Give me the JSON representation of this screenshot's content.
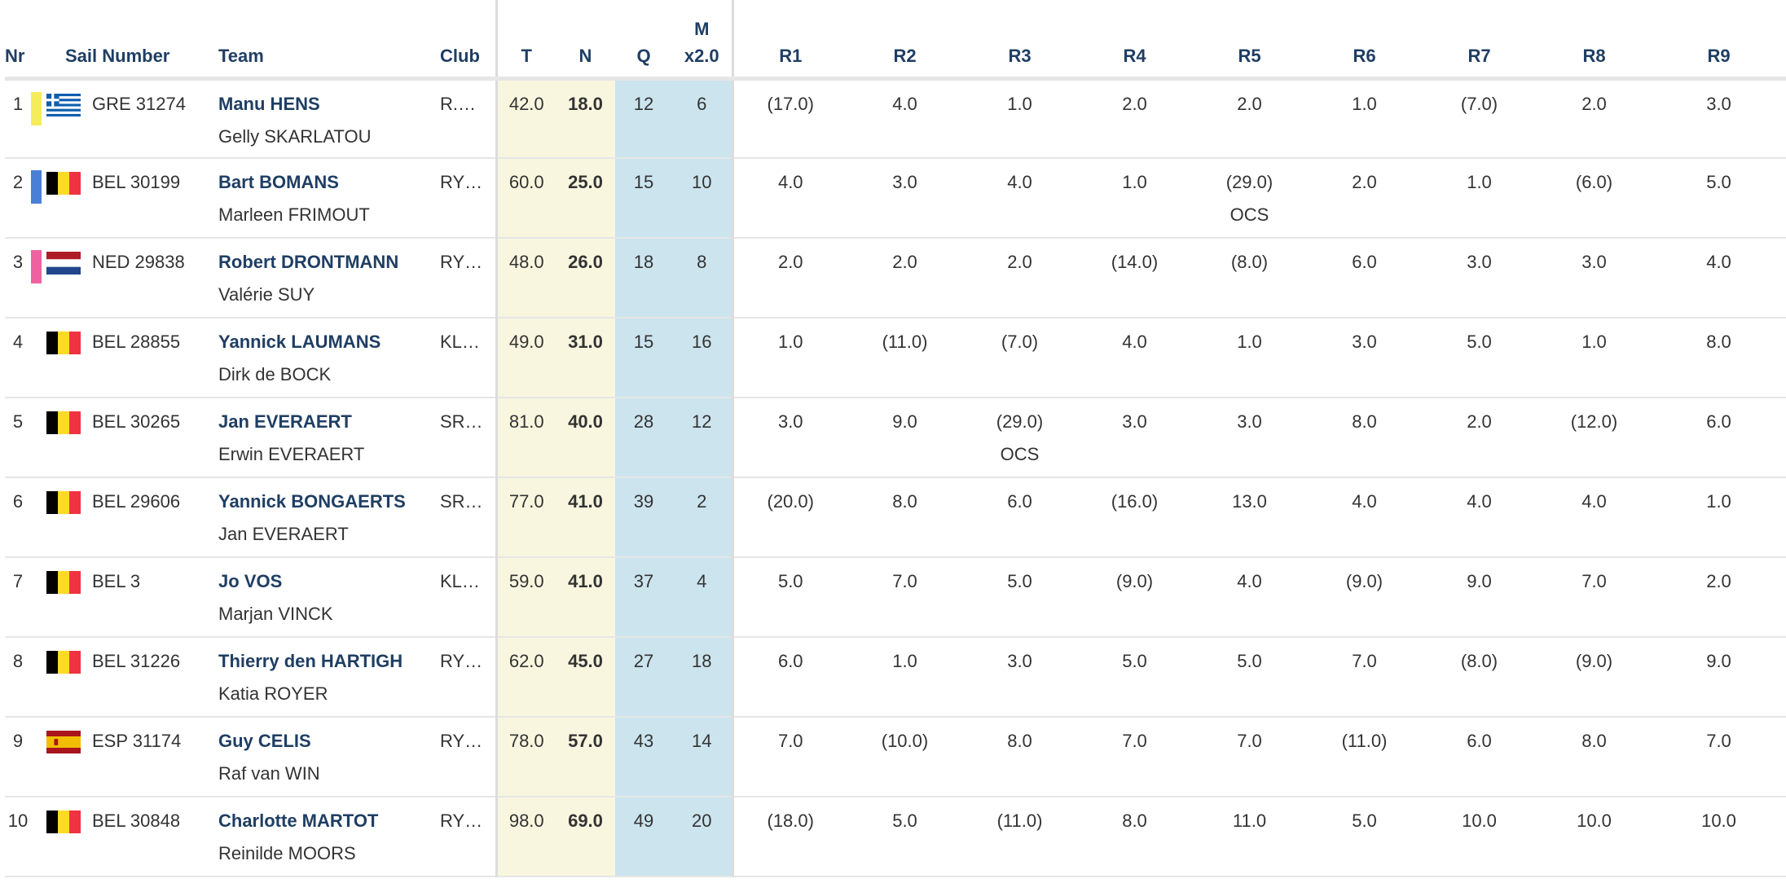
{
  "headers": {
    "nr": "Nr",
    "sail": "Sail Number",
    "team": "Team",
    "club": "Club",
    "t": "T",
    "n": "N",
    "q": "Q",
    "m_top": "M",
    "m_bottom": "x2.0",
    "races": [
      "R1",
      "R2",
      "R3",
      "R4",
      "R5",
      "R6",
      "R7",
      "R8",
      "R9"
    ]
  },
  "colors": {
    "gold_tint": "#f8f6df",
    "blue_tint": "#cce4ee",
    "header_text": "#1f3e63",
    "rank1": "#f5ec5b",
    "rank2": "#4a7fd6",
    "rank3": "#ee62a0"
  },
  "rows": [
    {
      "nr": "1",
      "bar": "#f5ec5b",
      "flag": "greece-flag-icon",
      "sail": "GRE 31274",
      "helm": "Manu HENS",
      "crew": "Gelly SKARLATOU",
      "club": "R.…",
      "t": "42.0",
      "n": "18.0",
      "q": "12",
      "m": "6",
      "r": [
        {
          "v": "(17.0)",
          "c": ""
        },
        {
          "v": "4.0",
          "c": ""
        },
        {
          "v": "1.0",
          "c": ""
        },
        {
          "v": "2.0",
          "c": ""
        },
        {
          "v": "2.0",
          "c": ""
        },
        {
          "v": "1.0",
          "c": ""
        },
        {
          "v": "(7.0)",
          "c": ""
        },
        {
          "v": "2.0",
          "c": ""
        },
        {
          "v": "3.0",
          "c": ""
        }
      ]
    },
    {
      "nr": "2",
      "bar": "#4a7fd6",
      "flag": "belgium-flag-icon",
      "sail": "BEL 30199",
      "helm": "Bart BOMANS",
      "crew": "Marleen FRIMOUT",
      "club": "RY…",
      "t": "60.0",
      "n": "25.0",
      "q": "15",
      "m": "10",
      "r": [
        {
          "v": "4.0",
          "c": ""
        },
        {
          "v": "3.0",
          "c": ""
        },
        {
          "v": "4.0",
          "c": ""
        },
        {
          "v": "1.0",
          "c": ""
        },
        {
          "v": "(29.0)",
          "c": "OCS"
        },
        {
          "v": "2.0",
          "c": ""
        },
        {
          "v": "1.0",
          "c": ""
        },
        {
          "v": "(6.0)",
          "c": ""
        },
        {
          "v": "5.0",
          "c": ""
        }
      ]
    },
    {
      "nr": "3",
      "bar": "#ee62a0",
      "flag": "netherlands-flag-icon",
      "sail": "NED 29838",
      "helm": "Robert DRONTMANN",
      "crew": "Valérie SUY",
      "club": "RY…",
      "t": "48.0",
      "n": "26.0",
      "q": "18",
      "m": "8",
      "r": [
        {
          "v": "2.0",
          "c": ""
        },
        {
          "v": "2.0",
          "c": ""
        },
        {
          "v": "2.0",
          "c": ""
        },
        {
          "v": "(14.0)",
          "c": ""
        },
        {
          "v": "(8.0)",
          "c": ""
        },
        {
          "v": "6.0",
          "c": ""
        },
        {
          "v": "3.0",
          "c": ""
        },
        {
          "v": "3.0",
          "c": ""
        },
        {
          "v": "4.0",
          "c": ""
        }
      ]
    },
    {
      "nr": "4",
      "bar": "",
      "flag": "belgium-flag-icon",
      "sail": "BEL 28855",
      "helm": "Yannick LAUMANS",
      "crew": "Dirk de BOCK",
      "club": "KL…",
      "t": "49.0",
      "n": "31.0",
      "q": "15",
      "m": "16",
      "r": [
        {
          "v": "1.0",
          "c": ""
        },
        {
          "v": "(11.0)",
          "c": ""
        },
        {
          "v": "(7.0)",
          "c": ""
        },
        {
          "v": "4.0",
          "c": ""
        },
        {
          "v": "1.0",
          "c": ""
        },
        {
          "v": "3.0",
          "c": ""
        },
        {
          "v": "5.0",
          "c": ""
        },
        {
          "v": "1.0",
          "c": ""
        },
        {
          "v": "8.0",
          "c": ""
        }
      ]
    },
    {
      "nr": "5",
      "bar": "",
      "flag": "belgium-flag-icon",
      "sail": "BEL 30265",
      "helm": "Jan EVERAERT",
      "crew": "Erwin EVERAERT",
      "club": "SR…",
      "t": "81.0",
      "n": "40.0",
      "q": "28",
      "m": "12",
      "r": [
        {
          "v": "3.0",
          "c": ""
        },
        {
          "v": "9.0",
          "c": ""
        },
        {
          "v": "(29.0)",
          "c": "OCS"
        },
        {
          "v": "3.0",
          "c": ""
        },
        {
          "v": "3.0",
          "c": ""
        },
        {
          "v": "8.0",
          "c": ""
        },
        {
          "v": "2.0",
          "c": ""
        },
        {
          "v": "(12.0)",
          "c": ""
        },
        {
          "v": "6.0",
          "c": ""
        }
      ]
    },
    {
      "nr": "6",
      "bar": "",
      "flag": "belgium-flag-icon",
      "sail": "BEL 29606",
      "helm": "Yannick BONGAERTS",
      "crew": "Jan EVERAERT",
      "club": "SR…",
      "t": "77.0",
      "n": "41.0",
      "q": "39",
      "m": "2",
      "r": [
        {
          "v": "(20.0)",
          "c": ""
        },
        {
          "v": "8.0",
          "c": ""
        },
        {
          "v": "6.0",
          "c": ""
        },
        {
          "v": "(16.0)",
          "c": ""
        },
        {
          "v": "13.0",
          "c": ""
        },
        {
          "v": "4.0",
          "c": ""
        },
        {
          "v": "4.0",
          "c": ""
        },
        {
          "v": "4.0",
          "c": ""
        },
        {
          "v": "1.0",
          "c": ""
        }
      ]
    },
    {
      "nr": "7",
      "bar": "",
      "flag": "belgium-flag-icon",
      "sail": "BEL 3",
      "helm": "Jo VOS",
      "crew": "Marjan VINCK",
      "club": "KL…",
      "t": "59.0",
      "n": "41.0",
      "q": "37",
      "m": "4",
      "r": [
        {
          "v": "5.0",
          "c": ""
        },
        {
          "v": "7.0",
          "c": ""
        },
        {
          "v": "5.0",
          "c": ""
        },
        {
          "v": "(9.0)",
          "c": ""
        },
        {
          "v": "4.0",
          "c": ""
        },
        {
          "v": "(9.0)",
          "c": ""
        },
        {
          "v": "9.0",
          "c": ""
        },
        {
          "v": "7.0",
          "c": ""
        },
        {
          "v": "2.0",
          "c": ""
        }
      ]
    },
    {
      "nr": "8",
      "bar": "",
      "flag": "belgium-flag-icon",
      "sail": "BEL 31226",
      "helm": "Thierry den HARTIGH",
      "crew": "Katia ROYER",
      "club": "RY…",
      "t": "62.0",
      "n": "45.0",
      "q": "27",
      "m": "18",
      "r": [
        {
          "v": "6.0",
          "c": ""
        },
        {
          "v": "1.0",
          "c": ""
        },
        {
          "v": "3.0",
          "c": ""
        },
        {
          "v": "5.0",
          "c": ""
        },
        {
          "v": "5.0",
          "c": ""
        },
        {
          "v": "7.0",
          "c": ""
        },
        {
          "v": "(8.0)",
          "c": ""
        },
        {
          "v": "(9.0)",
          "c": ""
        },
        {
          "v": "9.0",
          "c": ""
        }
      ]
    },
    {
      "nr": "9",
      "bar": "",
      "flag": "spain-flag-icon",
      "sail": "ESP 31174",
      "helm": "Guy CELIS",
      "crew": "Raf van WIN",
      "club": "RY…",
      "t": "78.0",
      "n": "57.0",
      "q": "43",
      "m": "14",
      "r": [
        {
          "v": "7.0",
          "c": ""
        },
        {
          "v": "(10.0)",
          "c": ""
        },
        {
          "v": "8.0",
          "c": ""
        },
        {
          "v": "7.0",
          "c": ""
        },
        {
          "v": "7.0",
          "c": ""
        },
        {
          "v": "(11.0)",
          "c": ""
        },
        {
          "v": "6.0",
          "c": ""
        },
        {
          "v": "8.0",
          "c": ""
        },
        {
          "v": "7.0",
          "c": ""
        }
      ]
    },
    {
      "nr": "10",
      "bar": "",
      "flag": "belgium-flag-icon",
      "sail": "BEL 30848",
      "helm": "Charlotte MARTOT",
      "crew": "Reinilde MOORS",
      "club": "RY…",
      "t": "98.0",
      "n": "69.0",
      "q": "49",
      "m": "20",
      "r": [
        {
          "v": "(18.0)",
          "c": ""
        },
        {
          "v": "5.0",
          "c": ""
        },
        {
          "v": "(11.0)",
          "c": ""
        },
        {
          "v": "8.0",
          "c": ""
        },
        {
          "v": "11.0",
          "c": ""
        },
        {
          "v": "5.0",
          "c": ""
        },
        {
          "v": "10.0",
          "c": ""
        },
        {
          "v": "10.0",
          "c": ""
        },
        {
          "v": "10.0",
          "c": ""
        }
      ]
    }
  ]
}
